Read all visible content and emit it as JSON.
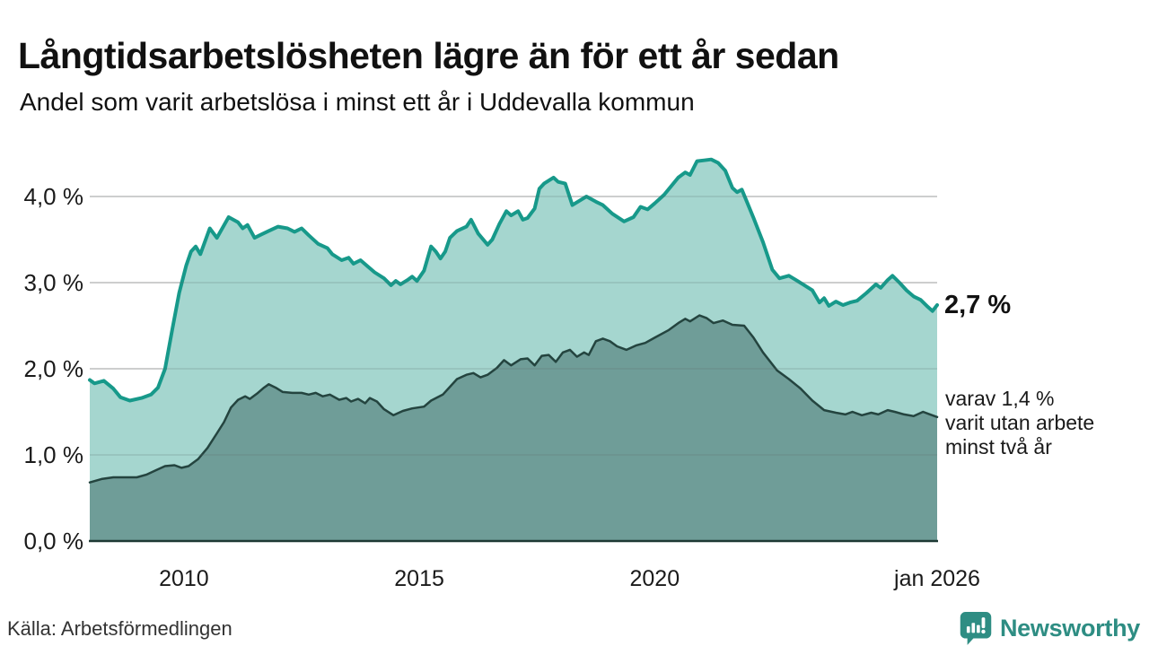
{
  "header": {
    "title": "Långtidsarbetslösheten lägre än för ett år sedan",
    "subtitle": "Andel som varit arbetslösa i minst ett år i Uddevalla kommun"
  },
  "annotations": {
    "latest_value": "2,7 %",
    "secondary_line1": "varav 1,4 %",
    "secondary_line2": "varit utan arbete",
    "secondary_line3": "minst två år"
  },
  "footer": {
    "source": "Källa: Arbetsförmedlingen",
    "brand": "Newsworthy"
  },
  "colors": {
    "accent_teal": "#17998a",
    "light_fill": "#a5d6cf",
    "dark_fill": "#6f9d98",
    "dark_line": "#24443f",
    "axis_line": "#1e3934",
    "gridline": "#d9d9d9"
  },
  "chart_data": {
    "type": "area",
    "title": "Långtidsarbetslösheten lägre än för ett år sedan",
    "subtitle": "Andel som varit arbetslösa i minst ett år i Uddevalla kommun",
    "xlabel": "",
    "ylabel": "",
    "xlim": [
      2008,
      2026
    ],
    "ylim": [
      0,
      4.6
    ],
    "grid": true,
    "legend": "none",
    "x_ticks": [
      {
        "label": "2010",
        "year": 2010
      },
      {
        "label": "2015",
        "year": 2015
      },
      {
        "label": "2020",
        "year": 2020
      },
      {
        "label": "jan 2026",
        "year": 2026
      }
    ],
    "y_ticks": [
      {
        "label": "0,0 %",
        "value": 0
      },
      {
        "label": "1,0 %",
        "value": 1
      },
      {
        "label": "2,0 %",
        "value": 2
      },
      {
        "label": "3,0 %",
        "value": 3
      },
      {
        "label": "4,0 %",
        "value": 4
      }
    ],
    "series": [
      {
        "name": "arbetslösa minst ett år",
        "line_color": "#17998a",
        "fill_color": "#a5d6cf",
        "line_width": 4,
        "end_label": "2,7 %",
        "x": [
          2008.0,
          2008.1,
          2008.3,
          2008.5,
          2008.65,
          2008.85,
          2009.1,
          2009.3,
          2009.45,
          2009.6,
          2009.75,
          2009.9,
          2010.05,
          2010.15,
          2010.25,
          2010.35,
          2010.55,
          2010.7,
          2010.95,
          2011.15,
          2011.25,
          2011.35,
          2011.5,
          2011.65,
          2011.8,
          2012.0,
          2012.2,
          2012.35,
          2012.5,
          2012.65,
          2012.85,
          2013.05,
          2013.15,
          2013.35,
          2013.5,
          2013.6,
          2013.75,
          2013.9,
          2014.05,
          2014.25,
          2014.4,
          2014.5,
          2014.6,
          2014.75,
          2014.85,
          2014.95,
          2015.1,
          2015.25,
          2015.35,
          2015.45,
          2015.55,
          2015.65,
          2015.8,
          2016.0,
          2016.1,
          2016.25,
          2016.45,
          2016.55,
          2016.7,
          2016.85,
          2016.95,
          2017.1,
          2017.2,
          2017.3,
          2017.45,
          2017.55,
          2017.65,
          2017.85,
          2017.95,
          2018.1,
          2018.25,
          2018.4,
          2018.55,
          2018.75,
          2018.9,
          2019.1,
          2019.35,
          2019.55,
          2019.7,
          2019.85,
          2020.0,
          2020.2,
          2020.35,
          2020.5,
          2020.65,
          2020.75,
          2020.9,
          2021.05,
          2021.2,
          2021.35,
          2021.5,
          2021.65,
          2021.75,
          2021.85,
          2021.95,
          2022.1,
          2022.3,
          2022.5,
          2022.65,
          2022.85,
          2023.0,
          2023.15,
          2023.35,
          2023.5,
          2023.6,
          2023.7,
          2023.85,
          2024.0,
          2024.15,
          2024.3,
          2024.5,
          2024.7,
          2024.8,
          2024.95,
          2025.05,
          2025.2,
          2025.35,
          2025.5,
          2025.65,
          2025.8,
          2025.9,
          2026.0
        ],
        "values": [
          1.87,
          1.83,
          1.86,
          1.77,
          1.67,
          1.63,
          1.66,
          1.7,
          1.78,
          2.0,
          2.45,
          2.88,
          3.2,
          3.36,
          3.42,
          3.33,
          3.63,
          3.52,
          3.76,
          3.7,
          3.63,
          3.67,
          3.52,
          3.56,
          3.6,
          3.65,
          3.63,
          3.59,
          3.63,
          3.55,
          3.45,
          3.4,
          3.33,
          3.26,
          3.29,
          3.22,
          3.26,
          3.19,
          3.12,
          3.05,
          2.97,
          3.02,
          2.98,
          3.03,
          3.07,
          3.02,
          3.14,
          3.42,
          3.36,
          3.28,
          3.36,
          3.52,
          3.6,
          3.65,
          3.73,
          3.57,
          3.44,
          3.5,
          3.68,
          3.83,
          3.78,
          3.83,
          3.73,
          3.75,
          3.86,
          4.09,
          4.15,
          4.22,
          4.17,
          4.15,
          3.9,
          3.95,
          4.0,
          3.94,
          3.9,
          3.8,
          3.71,
          3.76,
          3.88,
          3.85,
          3.92,
          4.02,
          4.12,
          4.22,
          4.28,
          4.25,
          4.41,
          4.42,
          4.43,
          4.39,
          4.3,
          4.1,
          4.05,
          4.08,
          3.95,
          3.75,
          3.47,
          3.15,
          3.05,
          3.08,
          3.03,
          2.98,
          2.91,
          2.77,
          2.82,
          2.73,
          2.78,
          2.74,
          2.77,
          2.79,
          2.88,
          2.98,
          2.94,
          3.03,
          3.08,
          3.0,
          2.91,
          2.84,
          2.8,
          2.72,
          2.67,
          2.74
        ]
      },
      {
        "name": "varav utan arbete minst två år",
        "line_color": "#24443f",
        "fill_color": "#6f9d98",
        "line_width": 2.5,
        "end_label": "1,4 %",
        "x": [
          2008.0,
          2008.25,
          2008.5,
          2008.75,
          2009.0,
          2009.2,
          2009.4,
          2009.6,
          2009.8,
          2009.95,
          2010.1,
          2010.3,
          2010.5,
          2010.7,
          2010.85,
          2011.0,
          2011.15,
          2011.3,
          2011.4,
          2011.55,
          2011.7,
          2011.8,
          2011.95,
          2012.1,
          2012.3,
          2012.5,
          2012.65,
          2012.8,
          2012.95,
          2013.1,
          2013.3,
          2013.45,
          2013.55,
          2013.7,
          2013.85,
          2013.95,
          2014.1,
          2014.25,
          2014.45,
          2014.65,
          2014.85,
          2015.1,
          2015.25,
          2015.5,
          2015.8,
          2016.0,
          2016.15,
          2016.3,
          2016.45,
          2016.65,
          2016.8,
          2016.95,
          2017.15,
          2017.3,
          2017.45,
          2017.6,
          2017.75,
          2017.9,
          2018.05,
          2018.2,
          2018.35,
          2018.5,
          2018.6,
          2018.75,
          2018.9,
          2019.05,
          2019.2,
          2019.4,
          2019.6,
          2019.8,
          2020.0,
          2020.3,
          2020.5,
          2020.65,
          2020.75,
          2020.95,
          2021.1,
          2021.25,
          2021.45,
          2021.65,
          2021.9,
          2022.1,
          2022.3,
          2022.6,
          2022.85,
          2023.1,
          2023.35,
          2023.6,
          2023.85,
          2024.05,
          2024.2,
          2024.4,
          2024.6,
          2024.75,
          2024.95,
          2025.1,
          2025.3,
          2025.5,
          2025.7,
          2025.85,
          2026.0
        ],
        "values": [
          0.68,
          0.72,
          0.74,
          0.74,
          0.74,
          0.77,
          0.82,
          0.87,
          0.88,
          0.85,
          0.87,
          0.95,
          1.08,
          1.25,
          1.38,
          1.55,
          1.64,
          1.68,
          1.65,
          1.71,
          1.78,
          1.82,
          1.78,
          1.73,
          1.72,
          1.72,
          1.7,
          1.72,
          1.68,
          1.7,
          1.64,
          1.66,
          1.62,
          1.65,
          1.6,
          1.66,
          1.62,
          1.53,
          1.46,
          1.51,
          1.54,
          1.56,
          1.63,
          1.7,
          1.88,
          1.93,
          1.95,
          1.9,
          1.93,
          2.01,
          2.1,
          2.04,
          2.11,
          2.12,
          2.04,
          2.15,
          2.16,
          2.08,
          2.19,
          2.22,
          2.14,
          2.19,
          2.16,
          2.32,
          2.35,
          2.32,
          2.26,
          2.22,
          2.27,
          2.3,
          2.36,
          2.45,
          2.53,
          2.58,
          2.55,
          2.62,
          2.59,
          2.53,
          2.56,
          2.51,
          2.5,
          2.36,
          2.19,
          1.98,
          1.88,
          1.77,
          1.63,
          1.52,
          1.49,
          1.47,
          1.5,
          1.46,
          1.49,
          1.47,
          1.52,
          1.5,
          1.47,
          1.45,
          1.5,
          1.47,
          1.44
        ]
      }
    ]
  }
}
